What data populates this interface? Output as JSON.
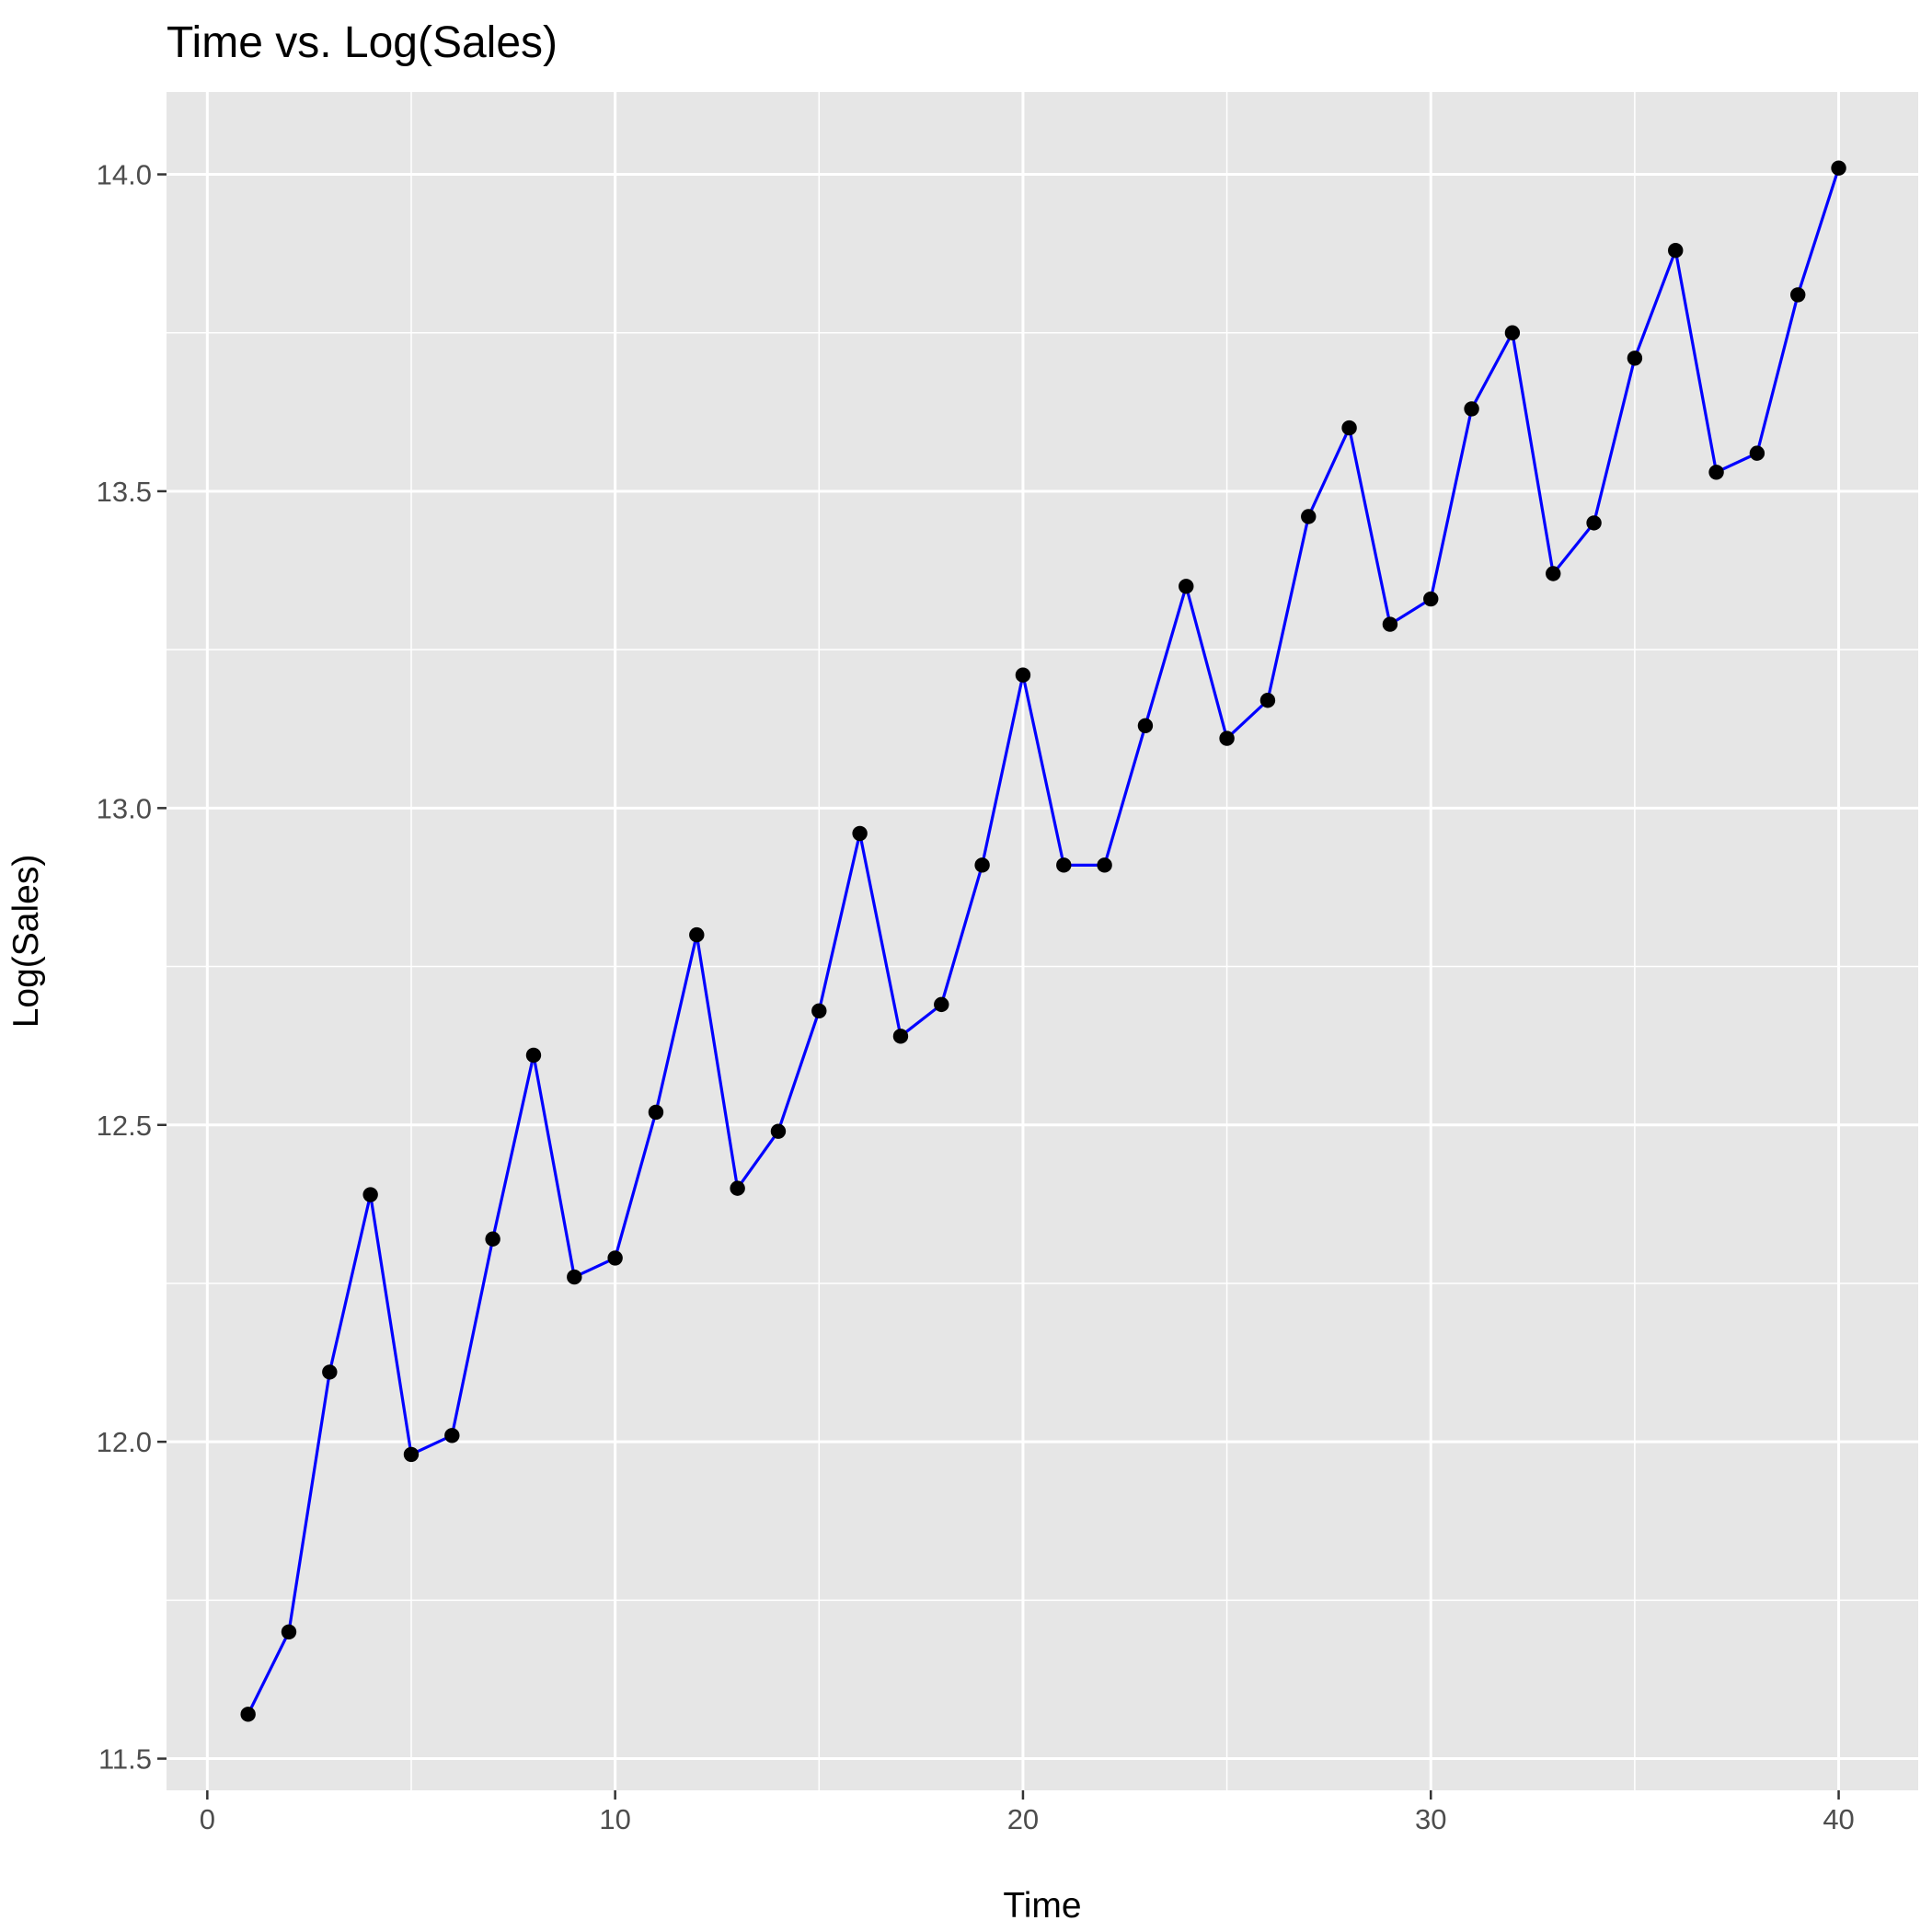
{
  "chart_data": {
    "type": "line",
    "title": "Time vs. Log(Sales)",
    "xlabel": "Time",
    "ylabel": "Log(Sales)",
    "xlim": [
      -1,
      41.95
    ],
    "ylim": [
      11.45,
      14.13
    ],
    "x_ticks": [
      0,
      10,
      20,
      30,
      40
    ],
    "y_ticks": [
      11.5,
      12.0,
      12.5,
      13.0,
      13.5,
      14.0
    ],
    "x_tick_labels": [
      "0",
      "10",
      "20",
      "30",
      "40"
    ],
    "y_tick_labels": [
      "11.5",
      "12.0",
      "12.5",
      "13.0",
      "13.5",
      "14.0"
    ],
    "grid": true,
    "legend": "none",
    "line_color": "#0000ff",
    "point_color": "#000000",
    "panel_color": "#e6e6e6",
    "series": [
      {
        "x": [
          1,
          2,
          3,
          4,
          5,
          6,
          7,
          8,
          9,
          10,
          11,
          12,
          13,
          14,
          15,
          16,
          17,
          18,
          19,
          20,
          21,
          22,
          23,
          24,
          25,
          26,
          27,
          28,
          29,
          30,
          31,
          32,
          33,
          34,
          35,
          36,
          37,
          38,
          39,
          40
        ],
        "values": [
          11.57,
          11.7,
          12.11,
          12.39,
          11.98,
          12.01,
          12.32,
          12.61,
          12.26,
          12.29,
          12.52,
          12.8,
          12.4,
          12.49,
          12.68,
          12.96,
          12.64,
          12.69,
          12.91,
          13.21,
          12.91,
          12.91,
          13.13,
          13.35,
          13.11,
          13.17,
          13.46,
          13.6,
          13.29,
          13.33,
          13.63,
          13.75,
          13.37,
          13.45,
          13.71,
          13.88,
          13.53,
          13.56,
          13.81,
          14.01
        ]
      }
    ]
  }
}
